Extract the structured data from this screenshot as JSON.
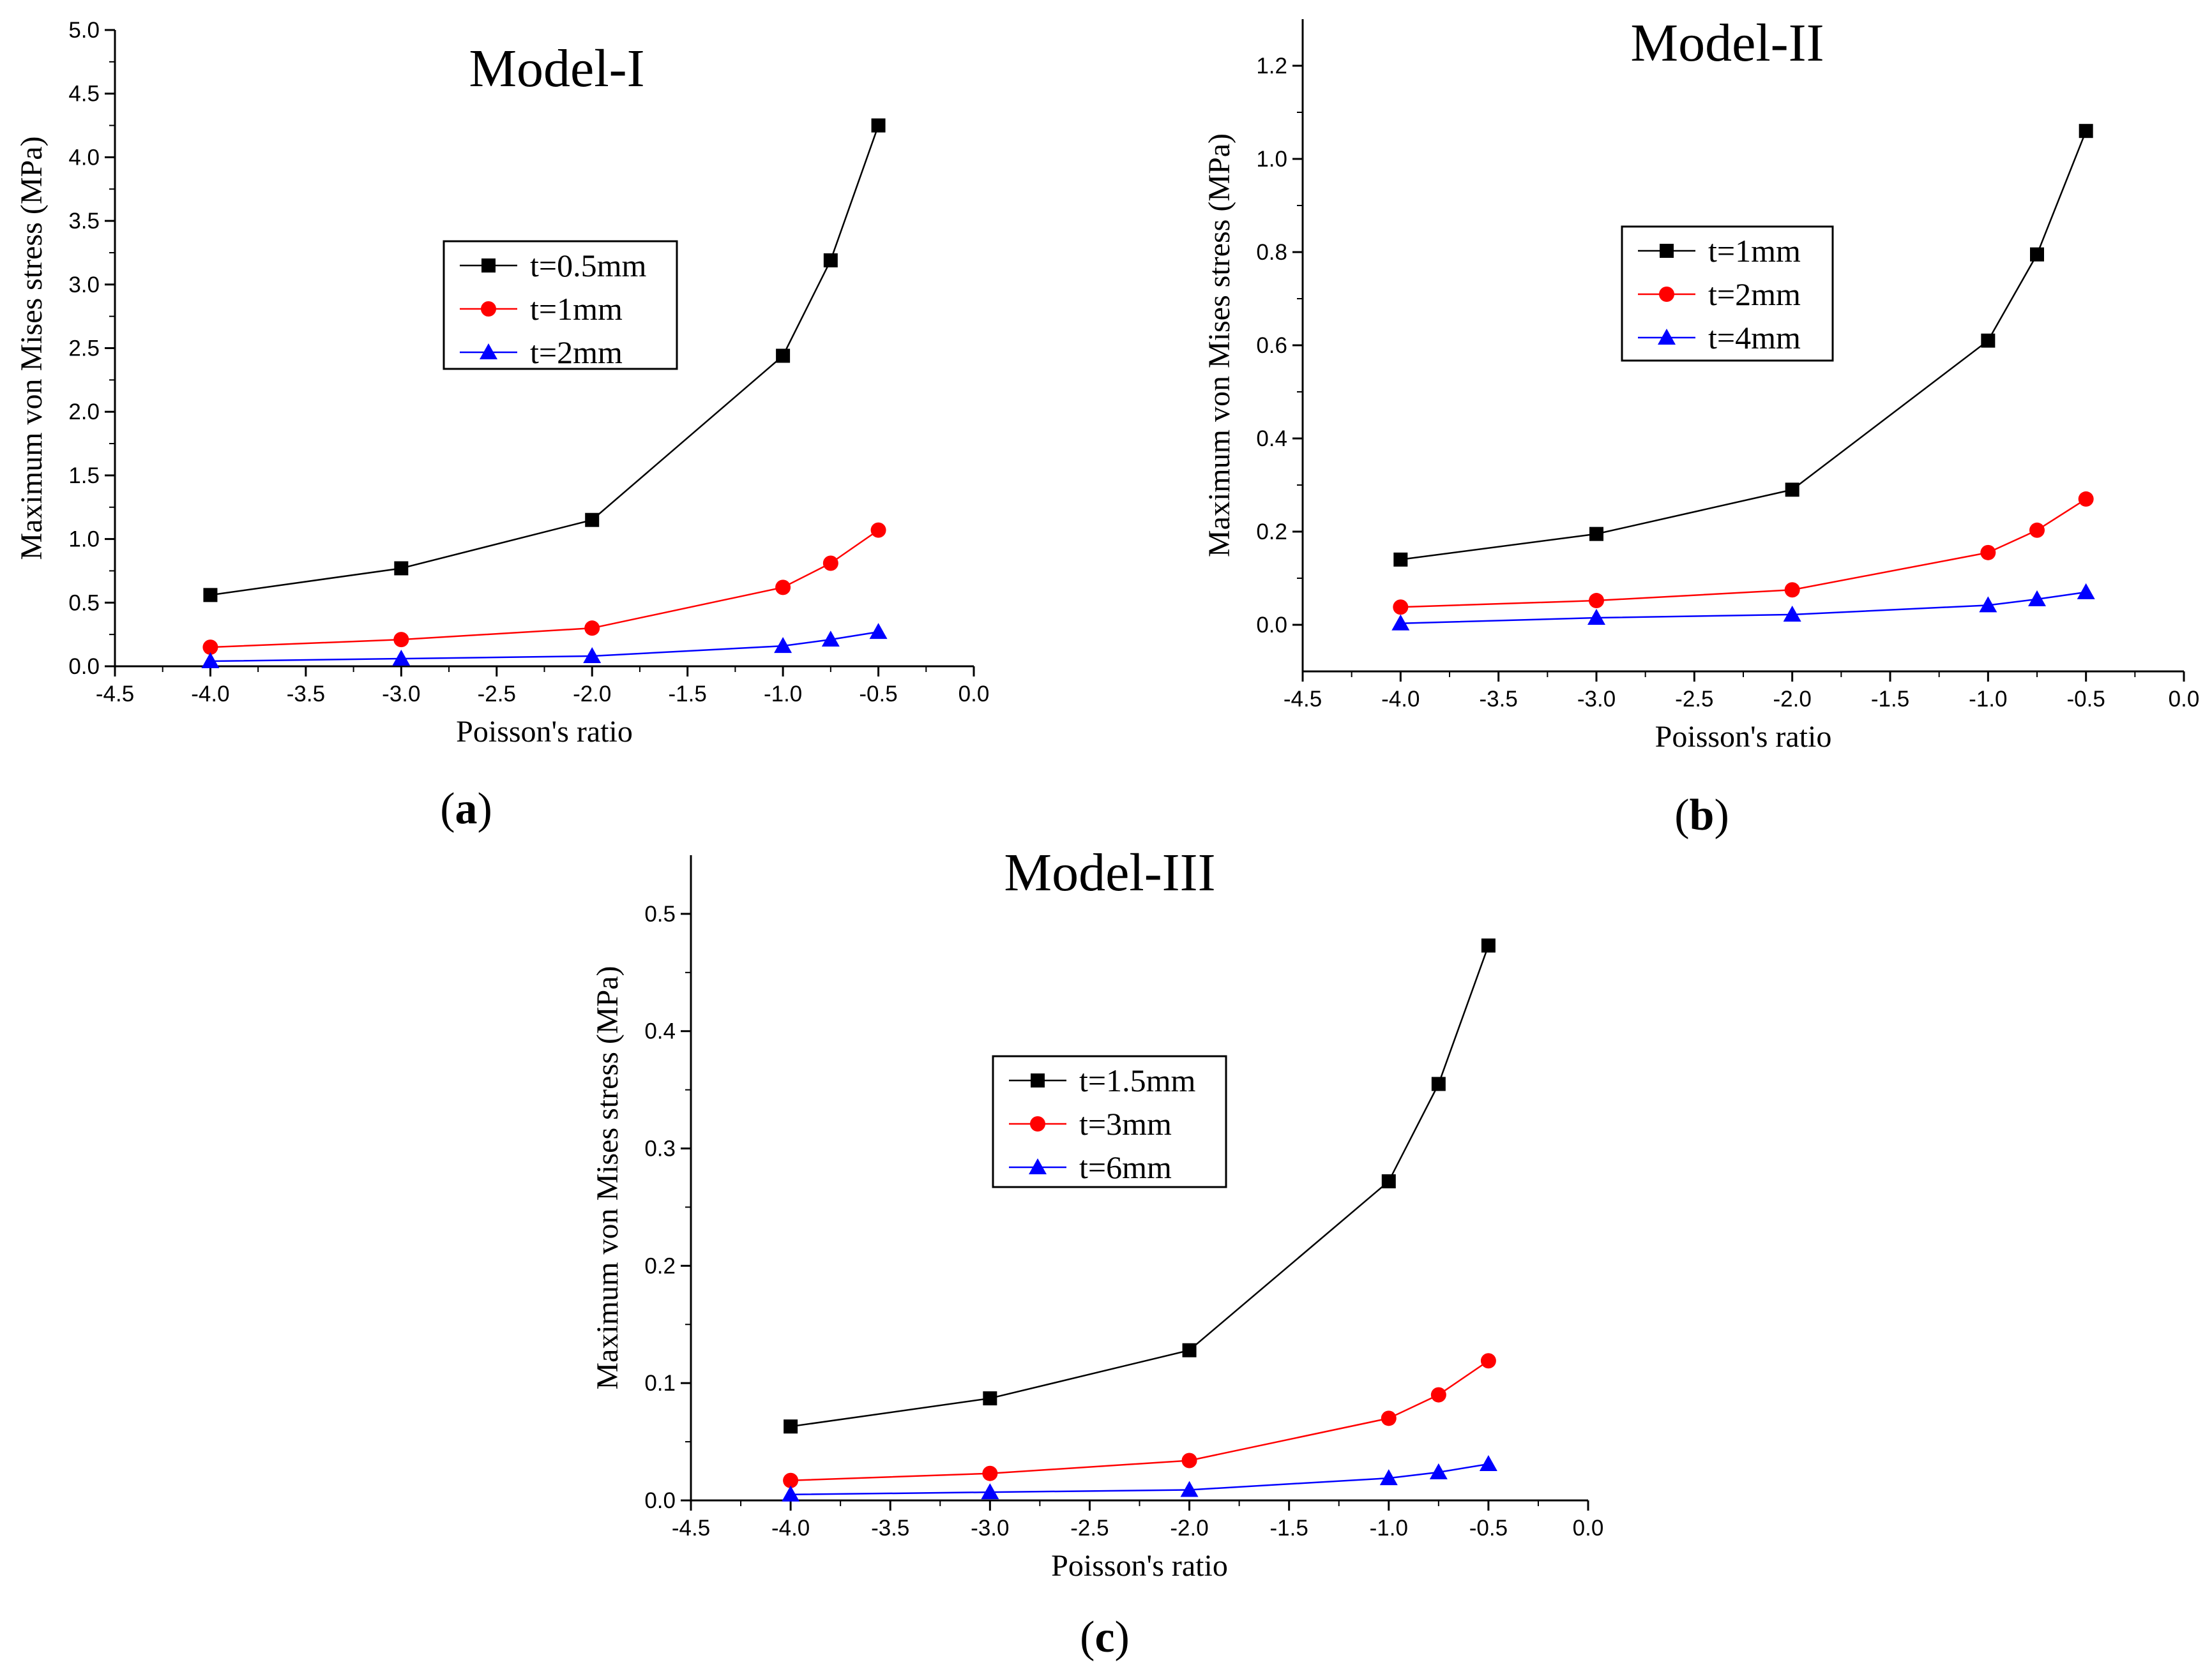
{
  "chart_data": [
    {
      "type": "line",
      "title": "Model-I",
      "caption": "a",
      "xlabel": "Poisson's ratio",
      "ylabel": "Maximum von Mises stress (MPa)",
      "xlim": [
        -4.5,
        0.0
      ],
      "ylim": [
        0.0,
        5.0
      ],
      "xticks": [
        -4.5,
        -4.0,
        -3.5,
        -3.0,
        -2.5,
        -2.0,
        -1.5,
        -1.0,
        -0.5,
        0.0
      ],
      "yticks": [
        0.0,
        0.5,
        1.0,
        1.5,
        2.0,
        2.5,
        3.0,
        3.5,
        4.0,
        4.5,
        5.0
      ],
      "xtick_labels": [
        "-4.5",
        "-4.0",
        "-3.5",
        "-3.0",
        "-2.5",
        "-2.0",
        "-1.5",
        "-1.0",
        "-0.5",
        "0.0"
      ],
      "ytick_labels": [
        "0.0",
        "0.5",
        "1.0",
        "1.5",
        "2.0",
        "2.5",
        "3.0",
        "3.5",
        "4.0",
        "4.5",
        "5.0"
      ],
      "legend_position": "center",
      "x": [
        -4.0,
        -3.0,
        -2.0,
        -1.0,
        -0.75,
        -0.5
      ],
      "series": [
        {
          "name": "t=0.5mm",
          "marker": "square",
          "color": "#000000",
          "values": [
            0.56,
            0.77,
            1.15,
            2.44,
            3.19,
            4.25
          ]
        },
        {
          "name": "t=1mm",
          "marker": "circle",
          "color": "#ff0000",
          "values": [
            0.15,
            0.21,
            0.3,
            0.62,
            0.81,
            1.07
          ]
        },
        {
          "name": "t=2mm",
          "marker": "triangle",
          "color": "#0000ff",
          "values": [
            0.04,
            0.06,
            0.08,
            0.16,
            0.21,
            0.27
          ]
        }
      ]
    },
    {
      "type": "line",
      "title": "Model-II",
      "caption": "b",
      "xlabel": "Poisson's ratio",
      "ylabel": "Maximum von Mises stress (MPa)",
      "xlim": [
        -4.5,
        0.0
      ],
      "ylim": [
        -0.1,
        1.3
      ],
      "xticks": [
        -4.5,
        -4.0,
        -3.5,
        -3.0,
        -2.5,
        -2.0,
        -1.5,
        -1.0,
        -0.5,
        0.0
      ],
      "yticks": [
        0.0,
        0.2,
        0.4,
        0.6,
        0.8,
        1.0,
        1.2
      ],
      "xtick_labels": [
        "-4.5",
        "-4.0",
        "-3.5",
        "-3.0",
        "-2.5",
        "-2.0",
        "-1.5",
        "-1.0",
        "-0.5",
        "0.0"
      ],
      "ytick_labels": [
        "0.0",
        "0.2",
        "0.4",
        "0.6",
        "0.8",
        "1.0",
        "1.2"
      ],
      "legend_position": "upper-center",
      "x": [
        -4.0,
        -3.0,
        -2.0,
        -1.0,
        -0.75,
        -0.5
      ],
      "series": [
        {
          "name": "t=1mm",
          "marker": "square",
          "color": "#000000",
          "values": [
            0.14,
            0.195,
            0.29,
            0.61,
            0.795,
            1.06
          ]
        },
        {
          "name": "t=2mm",
          "marker": "circle",
          "color": "#ff0000",
          "values": [
            0.038,
            0.052,
            0.075,
            0.155,
            0.203,
            0.27
          ]
        },
        {
          "name": "t=4mm",
          "marker": "triangle",
          "color": "#0000ff",
          "values": [
            0.003,
            0.015,
            0.022,
            0.042,
            0.055,
            0.07
          ]
        }
      ]
    },
    {
      "type": "line",
      "title": "Model-III",
      "caption": "c",
      "xlabel": "Poisson's ratio",
      "ylabel": "Maximum von Mises stress (MPa)",
      "xlim": [
        -4.5,
        0.0
      ],
      "ylim": [
        0.0,
        0.55
      ],
      "xticks": [
        -4.5,
        -4.0,
        -3.5,
        -3.0,
        -2.5,
        -2.0,
        -1.5,
        -1.0,
        -0.5,
        0.0
      ],
      "yticks": [
        0.0,
        0.1,
        0.2,
        0.3,
        0.4,
        0.5
      ],
      "xtick_labels": [
        "-4.5",
        "-4.0",
        "-3.5",
        "-3.0",
        "-2.5",
        "-2.0",
        "-1.5",
        "-1.0",
        "-0.5",
        "0.0"
      ],
      "ytick_labels": [
        "0.0",
        "0.1",
        "0.2",
        "0.3",
        "0.4",
        "0.5"
      ],
      "legend_position": "center",
      "x": [
        -4.0,
        -3.0,
        -2.0,
        -1.0,
        -0.75,
        -0.5
      ],
      "series": [
        {
          "name": "t=1.5mm",
          "marker": "square",
          "color": "#000000",
          "values": [
            0.063,
            0.087,
            0.128,
            0.272,
            0.355,
            0.473
          ]
        },
        {
          "name": "t=3mm",
          "marker": "circle",
          "color": "#ff0000",
          "values": [
            0.017,
            0.023,
            0.034,
            0.07,
            0.09,
            0.119
          ]
        },
        {
          "name": "t=6mm",
          "marker": "triangle",
          "color": "#0000ff",
          "values": [
            0.005,
            0.007,
            0.009,
            0.019,
            0.024,
            0.031
          ]
        }
      ]
    }
  ]
}
